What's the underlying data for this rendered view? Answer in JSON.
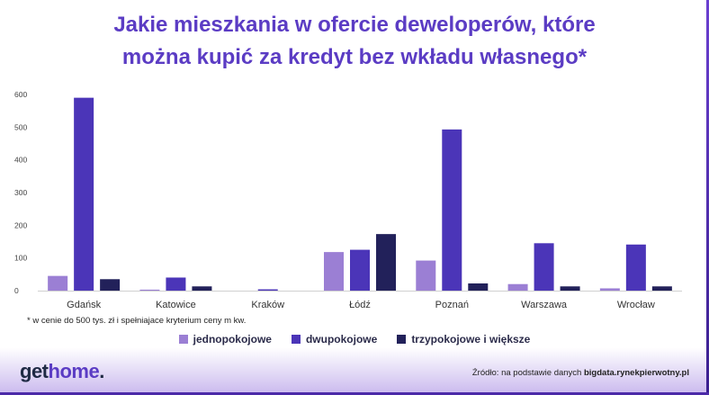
{
  "title_line1": "Jakie mieszkania w ofercie deweloperów, które",
  "title_line2": "można kupić za kredyt bez wkładu własnego*",
  "footnote": "* w cenie do 500 tys. zł i spełniajace kryterium ceny m kw.",
  "logo": {
    "part1": "get",
    "part2": "home",
    "part3": "."
  },
  "source": {
    "prefix": "Źródło: na podstawie danych ",
    "site": "bigdata.rynekpierwotny.pl"
  },
  "colors": {
    "title": "#5b3cc4",
    "jednopokojowe": "#9b7fd4",
    "dwupokojowe": "#4b35b8",
    "trzypokojowe": "#22215a"
  },
  "chart_data": {
    "type": "bar",
    "categories": [
      "Gdańsk",
      "Katowice",
      "Kraków",
      "Łódź",
      "Poznań",
      "Warszawa",
      "Wrocław"
    ],
    "series": [
      {
        "name": "jednopokojowe",
        "values": [
          45,
          3,
          0,
          118,
          92,
          20,
          7
        ]
      },
      {
        "name": "dwupokojowe",
        "values": [
          590,
          40,
          4,
          125,
          493,
          145,
          141
        ]
      },
      {
        "name": "trzypokojowe i większe",
        "values": [
          35,
          13,
          0,
          173,
          22,
          13,
          13
        ]
      }
    ],
    "yticks": [
      0,
      100,
      200,
      300,
      400,
      500,
      600
    ],
    "ylim": [
      0,
      600
    ],
    "legend": "bottom"
  }
}
